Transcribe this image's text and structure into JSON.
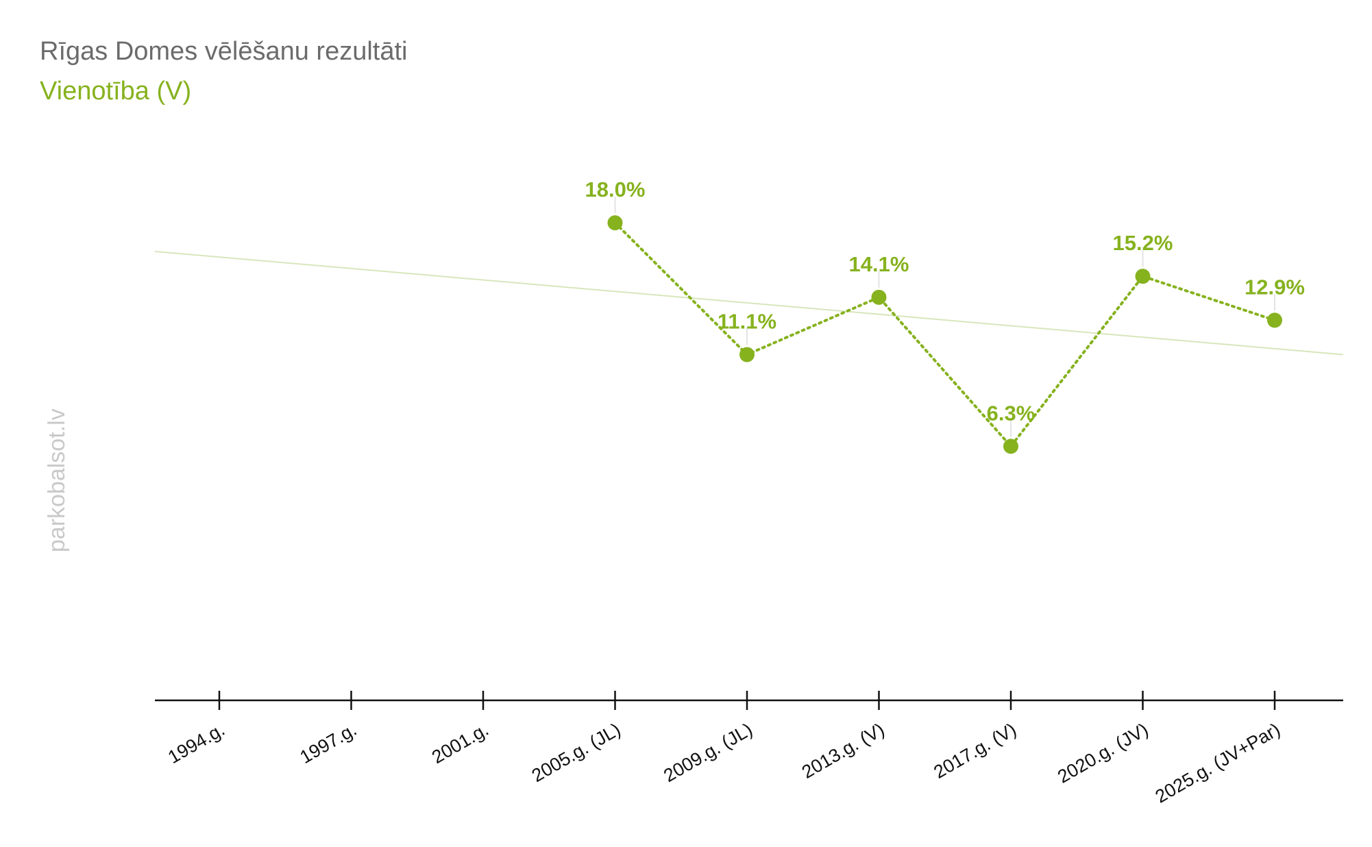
{
  "chart_data": {
    "type": "line",
    "title": "Rīgas Domes vēlēšanu rezultāti",
    "subtitle": "Vienotība (V)",
    "categories": [
      "1994.g.",
      "1997.g.",
      "2001.g.",
      "2005.g. (JL)",
      "2009.g. (JL)",
      "2013.g. (V)",
      "2017.g. (V)",
      "2020.g. (JV)",
      "2025.g. (JV+Par)"
    ],
    "series": [
      {
        "values": [
          null,
          null,
          null,
          18.0,
          11.1,
          14.1,
          6.3,
          15.2,
          12.9
        ],
        "data_labels": [
          "",
          "",
          "",
          "18.0%",
          "11.1%",
          "14.1%",
          "6.3%",
          "15.2%",
          "12.9%"
        ]
      }
    ],
    "trendline": {
      "start": 16.5,
      "end": 11.1
    },
    "ylim": [
      -7.0,
      25.0
    ],
    "grid": false,
    "legend": "none",
    "watermark": "parkobalsot.lv",
    "colors": {
      "series": "#86b21e",
      "trendline": "#d8e6bc",
      "axis": "#111111",
      "title": "#6b6b6b",
      "watermark": "#c9c9c9",
      "label_stem": "#e3e3e3"
    }
  }
}
